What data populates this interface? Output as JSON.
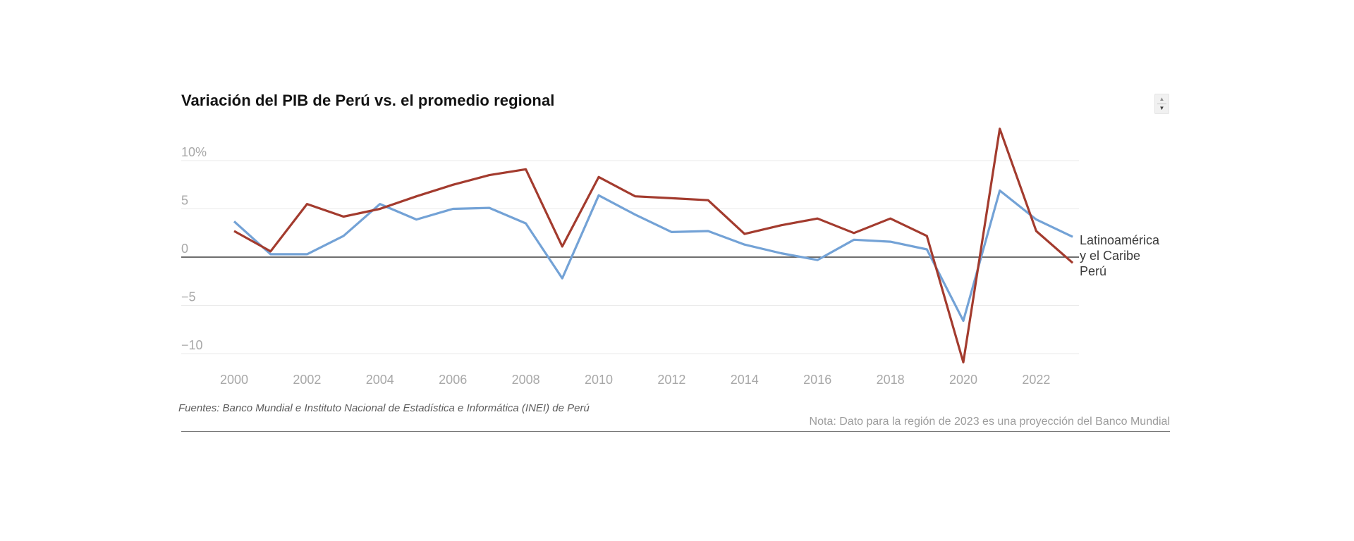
{
  "page": {
    "title": "Variación del PIB de Perú vs. el promedio regional"
  },
  "stepper": {
    "up": "▲",
    "down": "▼"
  },
  "legend": {
    "latam": {
      "line1": "Latinoamérica",
      "line2": "y el Caribe"
    },
    "peru": "Perú"
  },
  "footer": {
    "sources": "Fuentes: Banco Mundial e Instituto Nacional de Estadística e Informática (INEI) de Perú",
    "note": "Nota: Dato para la región de 2023 es una proyección del Banco Mundial"
  },
  "chart_data": {
    "type": "line",
    "title": "Variación del PIB de Perú vs. el promedio regional",
    "x": [
      2000,
      2001,
      2002,
      2003,
      2004,
      2005,
      2006,
      2007,
      2008,
      2009,
      2010,
      2011,
      2012,
      2013,
      2014,
      2015,
      2016,
      2017,
      2018,
      2019,
      2020,
      2021,
      2022,
      2023
    ],
    "series": [
      {
        "id": "latam",
        "name": "Latinoamérica y el Caribe",
        "color": "#73a2d6",
        "values": [
          3.7,
          0.3,
          0.3,
          2.2,
          5.5,
          3.9,
          5.0,
          5.1,
          3.5,
          -2.2,
          6.4,
          4.4,
          2.6,
          2.7,
          1.3,
          0.4,
          -0.3,
          1.8,
          1.6,
          0.8,
          -6.6,
          6.9,
          3.9,
          2.1
        ]
      },
      {
        "id": "peru",
        "name": "Perú",
        "color": "#a33b2e",
        "values": [
          2.7,
          0.6,
          5.5,
          4.2,
          5.0,
          6.3,
          7.5,
          8.5,
          9.1,
          1.1,
          8.3,
          6.3,
          6.1,
          5.9,
          2.4,
          3.3,
          4.0,
          2.5,
          4.0,
          2.2,
          -10.9,
          13.3,
          2.7,
          -0.6
        ]
      }
    ],
    "y_ticks": [
      {
        "value": 10,
        "label": "10%"
      },
      {
        "value": 5,
        "label": "5"
      },
      {
        "value": 0,
        "label": "0"
      },
      {
        "value": -5,
        "label": "−5"
      },
      {
        "value": -10,
        "label": "−10"
      }
    ],
    "x_tick_years": [
      2000,
      2002,
      2004,
      2006,
      2008,
      2010,
      2012,
      2014,
      2016,
      2018,
      2020,
      2022
    ],
    "ylim": [
      -12,
      14
    ],
    "xlabel": "",
    "ylabel": "",
    "grid": true,
    "zero_baseline": true,
    "legend_position": "right",
    "axis_label_color": "#a8a8a8",
    "grid_color": "#e9e9e9",
    "zero_line_color": "#3f3f3f"
  }
}
